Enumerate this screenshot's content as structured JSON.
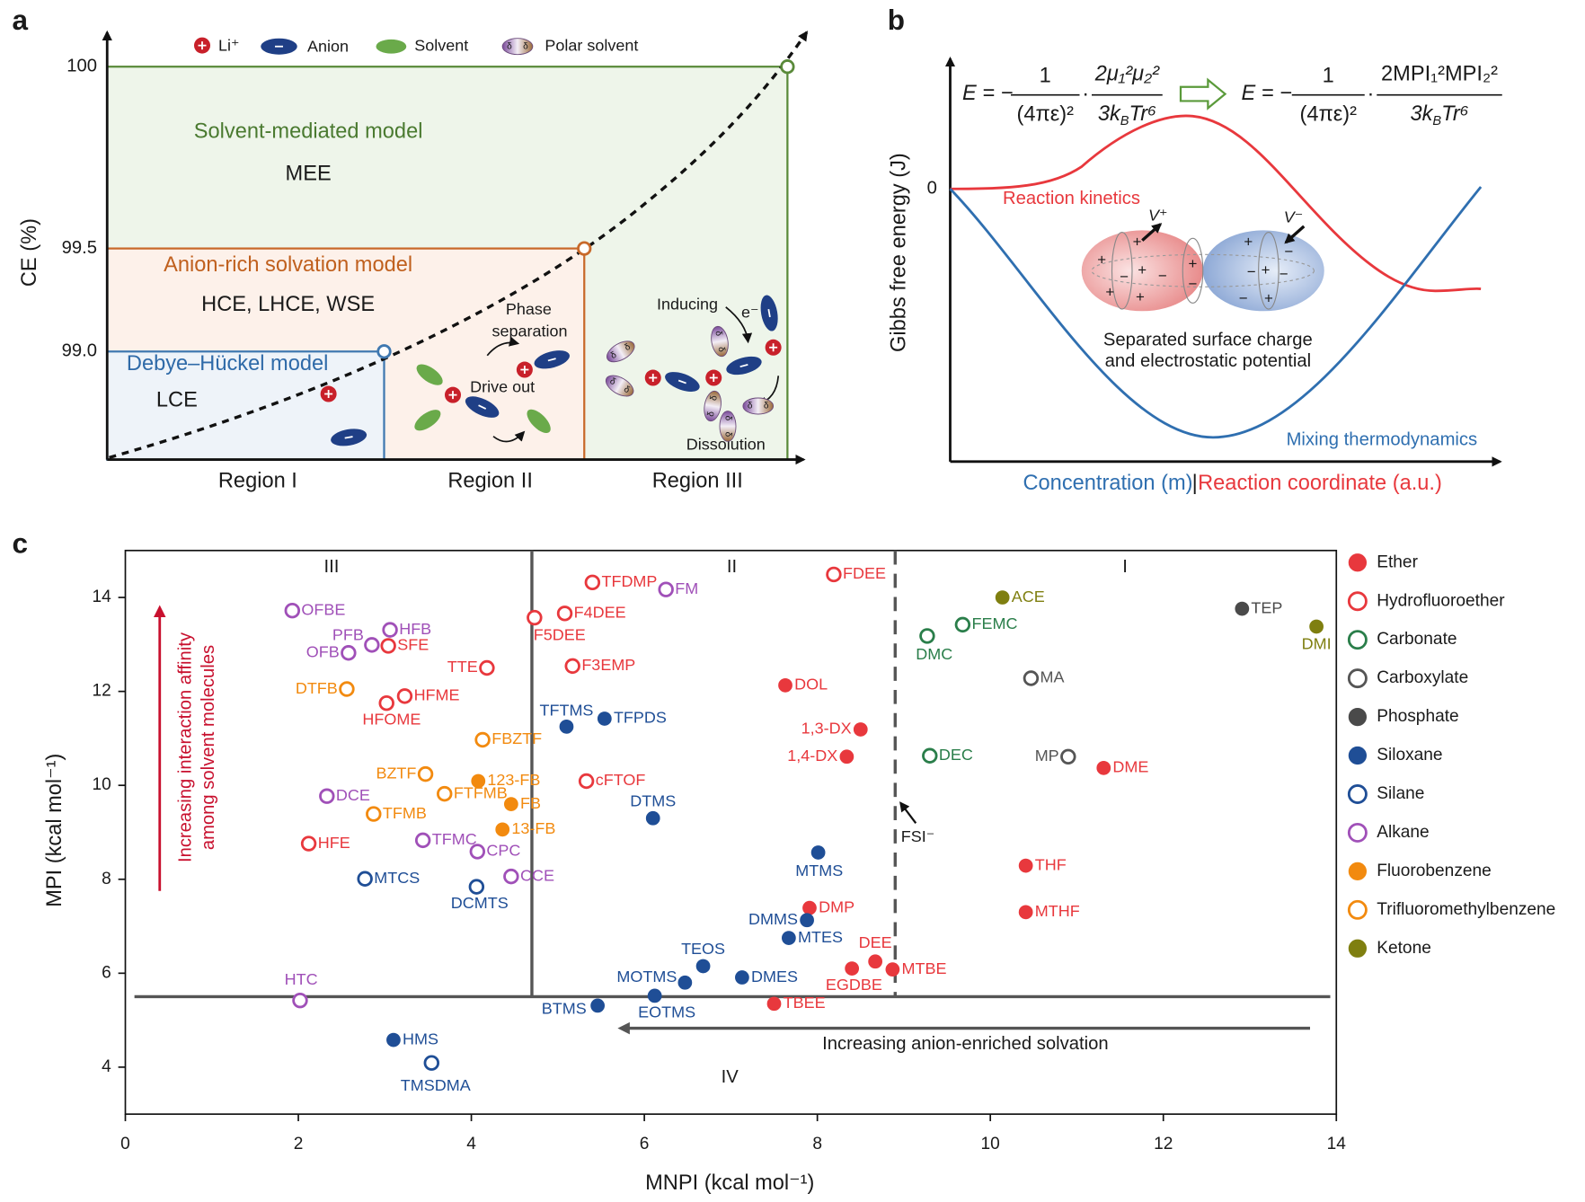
{
  "panel_a": {
    "label": "a",
    "legend": [
      "Li⁺",
      "Anion",
      "Solvent",
      "Polar solvent"
    ],
    "y_axis_label": "CE (%)",
    "y_ticks": [
      "100",
      "99.5",
      "99.0"
    ],
    "models": [
      {
        "name": "Solvent-mediated model",
        "electrolytes": "MEE"
      },
      {
        "name": "Anion-rich solvation model",
        "electrolytes": "HCE, LHCE, WSE"
      },
      {
        "name": "Debye–Hückel model",
        "electrolytes": "LCE"
      }
    ],
    "regions": [
      "Region I",
      "Region II",
      "Region III"
    ],
    "annotations": {
      "phase_1": "Phase",
      "phase_2": "separation",
      "drive_out": "Drive out",
      "inducing": "Inducing",
      "electron": "e⁻",
      "dissolution": "Dissolution"
    },
    "symbols": {
      "delta": "δ"
    }
  },
  "panel_b": {
    "label": "b",
    "y_axis_label": "Gibbs free energy (J)",
    "zero": "0",
    "curves": {
      "red": "Reaction kinetics",
      "blue": "Mixing thermodynamics"
    },
    "x_axis_label": {
      "blue": "Concentration (m)",
      "separator": "|",
      "red": "Reaction coordinate (a.u.)"
    },
    "caption": [
      "Separated surface charge",
      "and electrostatic potential"
    ],
    "potentials": [
      "V⁺",
      "V⁻"
    ],
    "charges": {
      "plus": "+",
      "minus": "−"
    },
    "equations": [
      {
        "lhs": "E = −",
        "num1": "1",
        "den1": "(4πε)²",
        "dot": "·",
        "num2": "2μ₁²μ₂²",
        "den2": [
          "3k",
          "B",
          "Tr⁶"
        ]
      },
      {
        "lhs": "E = −",
        "num1": "1",
        "den1": "(4πε)²",
        "dot": "·",
        "num2": "2MPI₁²MPI₂²",
        "den2": [
          "3k",
          "B",
          "Tr⁶"
        ]
      }
    ]
  },
  "chart_data": {
    "type": "scatter",
    "label": "c",
    "x_label": "MNPI (kcal mol⁻¹)",
    "y_label": "MPI (kcal mol⁻¹)",
    "xlim": [
      0,
      14
    ],
    "ylim": [
      3,
      15
    ],
    "xticks": [
      0,
      2,
      4,
      6,
      8,
      10,
      12,
      14
    ],
    "yticks": [
      4,
      6,
      8,
      10,
      12,
      14
    ],
    "grid": false,
    "legend": "right",
    "regions": [
      "III",
      "II",
      "I",
      "IV"
    ],
    "annotations": {
      "vertical_arrow": [
        "Increasing interaction affinity",
        "among solvent molecules"
      ],
      "horizontal_arrow": "Increasing anion-enriched solvation",
      "fsi": "FSI⁻"
    },
    "dividers": {
      "y": 5.5,
      "x_solid": 4.7,
      "x_dashed": 8.9
    },
    "series": [
      {
        "name": "Ether",
        "color": "#e8383d",
        "filled": true,
        "x": [
          7.63,
          8.5,
          8.34,
          11.31,
          10.41,
          10.41,
          7.91,
          8.67,
          8.4,
          8.87,
          7.5
        ],
        "values": [
          12.13,
          11.19,
          10.61,
          10.37,
          8.29,
          7.3,
          7.39,
          6.25,
          6.1,
          6.08,
          5.35
        ],
        "labels": [
          "DOL",
          "1,3-DX",
          "1,4-DX",
          "DME",
          "THF",
          "MTHF",
          "DMP",
          "DEE",
          "EGDBE",
          "MTBE",
          "TBEE"
        ]
      },
      {
        "name": "Hydrofluoroether",
        "color": "#e8383d",
        "filled": false,
        "x": [
          8.19,
          5.4,
          5.08,
          4.73,
          5.17,
          4.18,
          3.04,
          3.23,
          3.02,
          5.33,
          2.12
        ],
        "values": [
          14.49,
          14.32,
          13.66,
          13.57,
          12.54,
          12.5,
          12.97,
          11.9,
          11.75,
          10.09,
          8.76
        ],
        "labels": [
          "FDEE",
          "TFDMP",
          "F4DEE",
          "F5DEE",
          "F3EMP",
          "TTE",
          "SFE",
          "HFME",
          "HFOME",
          "cFTOF",
          "HFE"
        ]
      },
      {
        "name": "Carbonate",
        "color": "#2a7e4a",
        "filled": false,
        "x": [
          9.27,
          9.68,
          9.3
        ],
        "values": [
          13.18,
          13.42,
          10.63
        ],
        "labels": [
          "DMC",
          "FEMC",
          "DEC"
        ]
      },
      {
        "name": "Carboxylate",
        "color": "#555555",
        "filled": false,
        "x": [
          10.47,
          10.9
        ],
        "values": [
          12.28,
          10.61
        ],
        "labels": [
          "MA",
          "MP"
        ]
      },
      {
        "name": "Phosphate",
        "color": "#4a4a4a",
        "filled": true,
        "x": [
          12.91
        ],
        "values": [
          13.76
        ],
        "labels": [
          "TEP"
        ]
      },
      {
        "name": "Siloxane",
        "color": "#1f4e96",
        "filled": true,
        "x": [
          5.1,
          5.54,
          6.1,
          8.01,
          7.88,
          7.67,
          6.68,
          7.13,
          6.47,
          6.12,
          5.46,
          3.1
        ],
        "values": [
          11.25,
          11.42,
          9.3,
          8.57,
          7.13,
          6.75,
          6.15,
          5.91,
          5.8,
          5.52,
          5.31,
          4.58
        ],
        "labels": [
          "TFTMS",
          "TFPDS",
          "DTMS",
          "MTMS",
          "DMMS",
          "MTES",
          "TEOS",
          "DMES",
          "MOTMS",
          "EOTMS",
          "BTMS",
          "HMS"
        ]
      },
      {
        "name": "Silane",
        "color": "#1f4e96",
        "filled": false,
        "x": [
          2.77,
          4.06,
          3.54
        ],
        "values": [
          8.01,
          7.84,
          4.09
        ],
        "labels": [
          "MTCS",
          "DCMTS",
          "TMSDMA"
        ]
      },
      {
        "name": "Alkane",
        "color": "#a050b8",
        "filled": false,
        "x": [
          1.93,
          3.06,
          2.85,
          2.58,
          2.33,
          3.44,
          4.07,
          4.46,
          2.02,
          6.25
        ],
        "values": [
          13.72,
          13.31,
          12.99,
          12.82,
          9.77,
          8.83,
          8.59,
          8.06,
          5.42,
          14.17
        ],
        "labels": [
          "OFBE",
          "HFB",
          "PFB",
          "OFB",
          "DCE",
          "TFMC",
          "CPC",
          "CCE",
          "HTC",
          "FM"
        ]
      },
      {
        "name": "Fluorobenzene",
        "color": "#f28a0f",
        "filled": true,
        "x": [
          4.08,
          4.46,
          4.36
        ],
        "values": [
          10.09,
          9.6,
          9.06
        ],
        "labels": [
          "123-FB",
          "FB",
          "13-FB"
        ]
      },
      {
        "name": "Trifluoromethylbenzene",
        "color": "#f28a0f",
        "filled": false,
        "x": [
          2.56,
          4.13,
          3.47,
          3.69,
          2.87
        ],
        "values": [
          12.05,
          10.97,
          10.24,
          9.82,
          9.39
        ],
        "labels": [
          "DTFB",
          "FBZTF",
          "BZTF",
          "FTFMB",
          "TFMB"
        ]
      },
      {
        "name": "Ketone",
        "color": "#7f7f10",
        "filled": true,
        "x": [
          10.14,
          13.77
        ],
        "values": [
          14.0,
          13.38
        ],
        "labels": [
          "ACE",
          "DMI"
        ]
      }
    ]
  }
}
